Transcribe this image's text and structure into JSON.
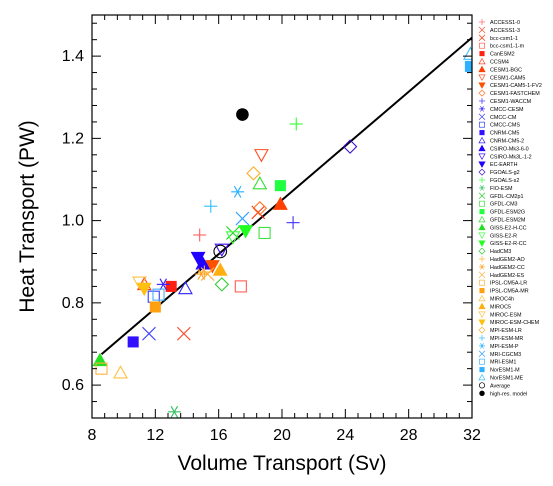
{
  "chart_data": {
    "type": "scatter",
    "title": "",
    "xlabel": "Volume Transport (Sv)",
    "ylabel": "Heat Transport (PW)",
    "xlim": [
      8,
      32
    ],
    "ylim": [
      0.52,
      1.5
    ],
    "xticks": [
      8,
      12,
      16,
      20,
      24,
      28,
      32
    ],
    "yticks": [
      0.6,
      0.8,
      1.0,
      1.2,
      1.4
    ],
    "ytick_labels": [
      "0.6",
      "0.8",
      "1.0",
      "1.2",
      "1.4"
    ],
    "grid": false,
    "legend_position": "right",
    "regression_line": {
      "x": [
        8.6,
        32
      ],
      "y": [
        0.675,
        1.445
      ],
      "color": "#000000"
    },
    "series": [
      {
        "name": "ACCESS1-0",
        "marker": "plus",
        "color": "#ff6060",
        "points": [
          [
            14.8,
            0.965
          ]
        ]
      },
      {
        "name": "ACCESS1-3",
        "marker": "x",
        "color": "#ff5030",
        "points": [
          [
            13.8,
            0.725
          ]
        ]
      },
      {
        "name": "bcc-csm1-1",
        "marker": "x",
        "color": "#ff3000",
        "points": [
          [
            18.5,
            1.02
          ]
        ]
      },
      {
        "name": "bcc-csm1-1-m",
        "marker": "square-open",
        "color": "#ff6050",
        "points": [
          [
            17.4,
            0.84
          ]
        ]
      },
      {
        "name": "CanESM2",
        "marker": "square",
        "color": "#ff2010",
        "points": [
          [
            13.0,
            0.84
          ]
        ]
      },
      {
        "name": "CCSM4",
        "marker": "triangle-open",
        "color": "#ff4020",
        "points": [
          [
            11.3,
            0.845
          ]
        ]
      },
      {
        "name": "CESM1-BGC",
        "marker": "triangle",
        "color": "#ff4000",
        "points": [
          [
            19.9,
            1.04
          ]
        ]
      },
      {
        "name": "CESM1-CAM5",
        "marker": "triangle-down-open",
        "color": "#ff5020",
        "points": [
          [
            18.7,
            1.16
          ]
        ]
      },
      {
        "name": "CESM1-CAM5-1-FV2",
        "marker": "triangle-down",
        "color": "#ff5000",
        "points": [
          [
            15.6,
            0.89
          ]
        ]
      },
      {
        "name": "CESM1-FASTCHEM",
        "marker": "diamond-open",
        "color": "#ff7020",
        "points": [
          [
            18.6,
            1.03
          ]
        ]
      },
      {
        "name": "CESM1-WACCM",
        "marker": "plus",
        "color": "#4030ff",
        "points": [
          [
            20.7,
            0.995
          ]
        ]
      },
      {
        "name": "CMCC-CESM",
        "marker": "asterisk",
        "color": "#3020ff",
        "points": [
          [
            12.5,
            0.845
          ]
        ]
      },
      {
        "name": "CMCC-CM",
        "marker": "x",
        "color": "#4040ff",
        "points": [
          [
            11.6,
            0.725
          ]
        ]
      },
      {
        "name": "CMCC-CMS",
        "marker": "square-open",
        "color": "#3040ff",
        "points": [
          [
            11.9,
            0.815
          ]
        ]
      },
      {
        "name": "CNRM-CM5",
        "marker": "square",
        "color": "#3010ff",
        "points": [
          [
            10.6,
            0.705
          ]
        ]
      },
      {
        "name": "CNRM-CM5-2",
        "marker": "triangle-open",
        "color": "#3020ff",
        "points": [
          [
            13.9,
            0.835
          ]
        ]
      },
      {
        "name": "CSIRO-Mk3-6-0",
        "marker": "triangle",
        "color": "#2000ff",
        "points": [
          [
            15.0,
            0.895
          ]
        ]
      },
      {
        "name": "CSIRO-Mk3L-1-2",
        "marker": "triangle-down-open",
        "color": "#4010ff",
        "points": [
          [
            16.2,
            0.93
          ]
        ]
      },
      {
        "name": "EC-EARTH",
        "marker": "triangle-down",
        "color": "#2000ff",
        "points": [
          [
            14.7,
            0.91
          ]
        ]
      },
      {
        "name": "FGOALS-g2",
        "marker": "diamond-open",
        "color": "#4010d0",
        "points": [
          [
            24.3,
            1.18
          ]
        ]
      },
      {
        "name": "FGOALS-s2",
        "marker": "plus",
        "color": "#30ff30",
        "points": [
          [
            20.9,
            1.235
          ]
        ]
      },
      {
        "name": "FIO-ESM",
        "marker": "asterisk",
        "color": "#30c060",
        "points": [
          [
            13.2,
            0.535
          ]
        ]
      },
      {
        "name": "GFDL-CM2p1",
        "marker": "x",
        "color": "#30d030",
        "points": [
          [
            16.9,
            0.97
          ]
        ]
      },
      {
        "name": "GFDL-CM3",
        "marker": "square-open",
        "color": "#40e040",
        "points": [
          [
            18.9,
            0.97
          ]
        ]
      },
      {
        "name": "GFDL-ESM2G",
        "marker": "square",
        "color": "#20ff40",
        "points": [
          [
            19.9,
            1.085
          ]
        ]
      },
      {
        "name": "GFDL-ESM2M",
        "marker": "triangle-open",
        "color": "#30e030",
        "points": [
          [
            18.6,
            1.09
          ]
        ]
      },
      {
        "name": "GISS-E2-H-CC",
        "marker": "triangle",
        "color": "#20e020",
        "points": [
          [
            8.5,
            0.66
          ]
        ]
      },
      {
        "name": "GISS-E2-R",
        "marker": "triangle-down-open",
        "color": "#40ff40",
        "points": [
          [
            16.9,
            0.96
          ]
        ]
      },
      {
        "name": "GISS-E2-R-CC",
        "marker": "triangle-down",
        "color": "#20ff20",
        "points": [
          [
            17.7,
            0.975
          ]
        ]
      },
      {
        "name": "HadCM3",
        "marker": "diamond-open",
        "color": "#30d030",
        "points": [
          [
            16.2,
            0.845
          ]
        ]
      },
      {
        "name": "HadGEM2-AO",
        "marker": "plus",
        "color": "#ffb030",
        "points": [
          [
            15.1,
            0.875
          ]
        ]
      },
      {
        "name": "HadGEM2-CC",
        "marker": "asterisk",
        "color": "#ffa020",
        "points": [
          [
            14.9,
            0.87
          ]
        ]
      },
      {
        "name": "HadGEM2-ES",
        "marker": "x",
        "color": "#ffb040",
        "points": [
          [
            15.3,
            0.87
          ]
        ]
      },
      {
        "name": "IPSL-CM5A-LR",
        "marker": "square-open",
        "color": "#ffb040",
        "points": [
          [
            8.6,
            0.64
          ]
        ]
      },
      {
        "name": "IPSL-CM5A-MR",
        "marker": "square",
        "color": "#ffa010",
        "points": [
          [
            12.0,
            0.79
          ]
        ]
      },
      {
        "name": "MIROC4h",
        "marker": "triangle-open",
        "color": "#ffc040",
        "points": [
          [
            9.8,
            0.63
          ]
        ]
      },
      {
        "name": "MIROC5",
        "marker": "triangle",
        "color": "#ffb010",
        "points": [
          [
            16.1,
            0.88
          ]
        ]
      },
      {
        "name": "MIROC-ESM",
        "marker": "triangle-down-open",
        "color": "#ffc040",
        "points": [
          [
            11.0,
            0.85
          ]
        ]
      },
      {
        "name": "MIROC-ESM-CHEM",
        "marker": "triangle-down",
        "color": "#ffc010",
        "points": [
          [
            11.3,
            0.835
          ]
        ]
      },
      {
        "name": "MPI-ESM-LR",
        "marker": "diamond-open",
        "color": "#ffb030",
        "points": [
          [
            18.2,
            1.115
          ]
        ]
      },
      {
        "name": "MPI-ESM-MR",
        "marker": "plus",
        "color": "#30c0ff",
        "points": [
          [
            15.5,
            1.035
          ]
        ]
      },
      {
        "name": "MPI-ESM-P",
        "marker": "asterisk",
        "color": "#20b0ff",
        "points": [
          [
            17.2,
            1.07
          ]
        ]
      },
      {
        "name": "MRI-CGCM3",
        "marker": "x",
        "color": "#30a0ff",
        "points": [
          [
            17.5,
            1.005
          ]
        ]
      },
      {
        "name": "MRI-ESM1",
        "marker": "square-open",
        "color": "#40b0ff",
        "points": [
          [
            12.2,
            0.82
          ]
        ]
      },
      {
        "name": "NorESM1-M",
        "marker": "square",
        "color": "#30b0ff",
        "points": [
          [
            31.9,
            1.375
          ]
        ]
      },
      {
        "name": "NorESM1-ME",
        "marker": "triangle-open",
        "color": "#40c0ff",
        "points": [
          [
            31.9,
            1.405
          ]
        ]
      },
      {
        "name": "Average",
        "marker": "circle-open",
        "color": "#000000",
        "points": [
          [
            16.1,
            0.925
          ]
        ]
      },
      {
        "name": "high-res. model",
        "marker": "circle",
        "color": "#000000",
        "points": [
          [
            17.5,
            1.258
          ]
        ]
      }
    ]
  }
}
